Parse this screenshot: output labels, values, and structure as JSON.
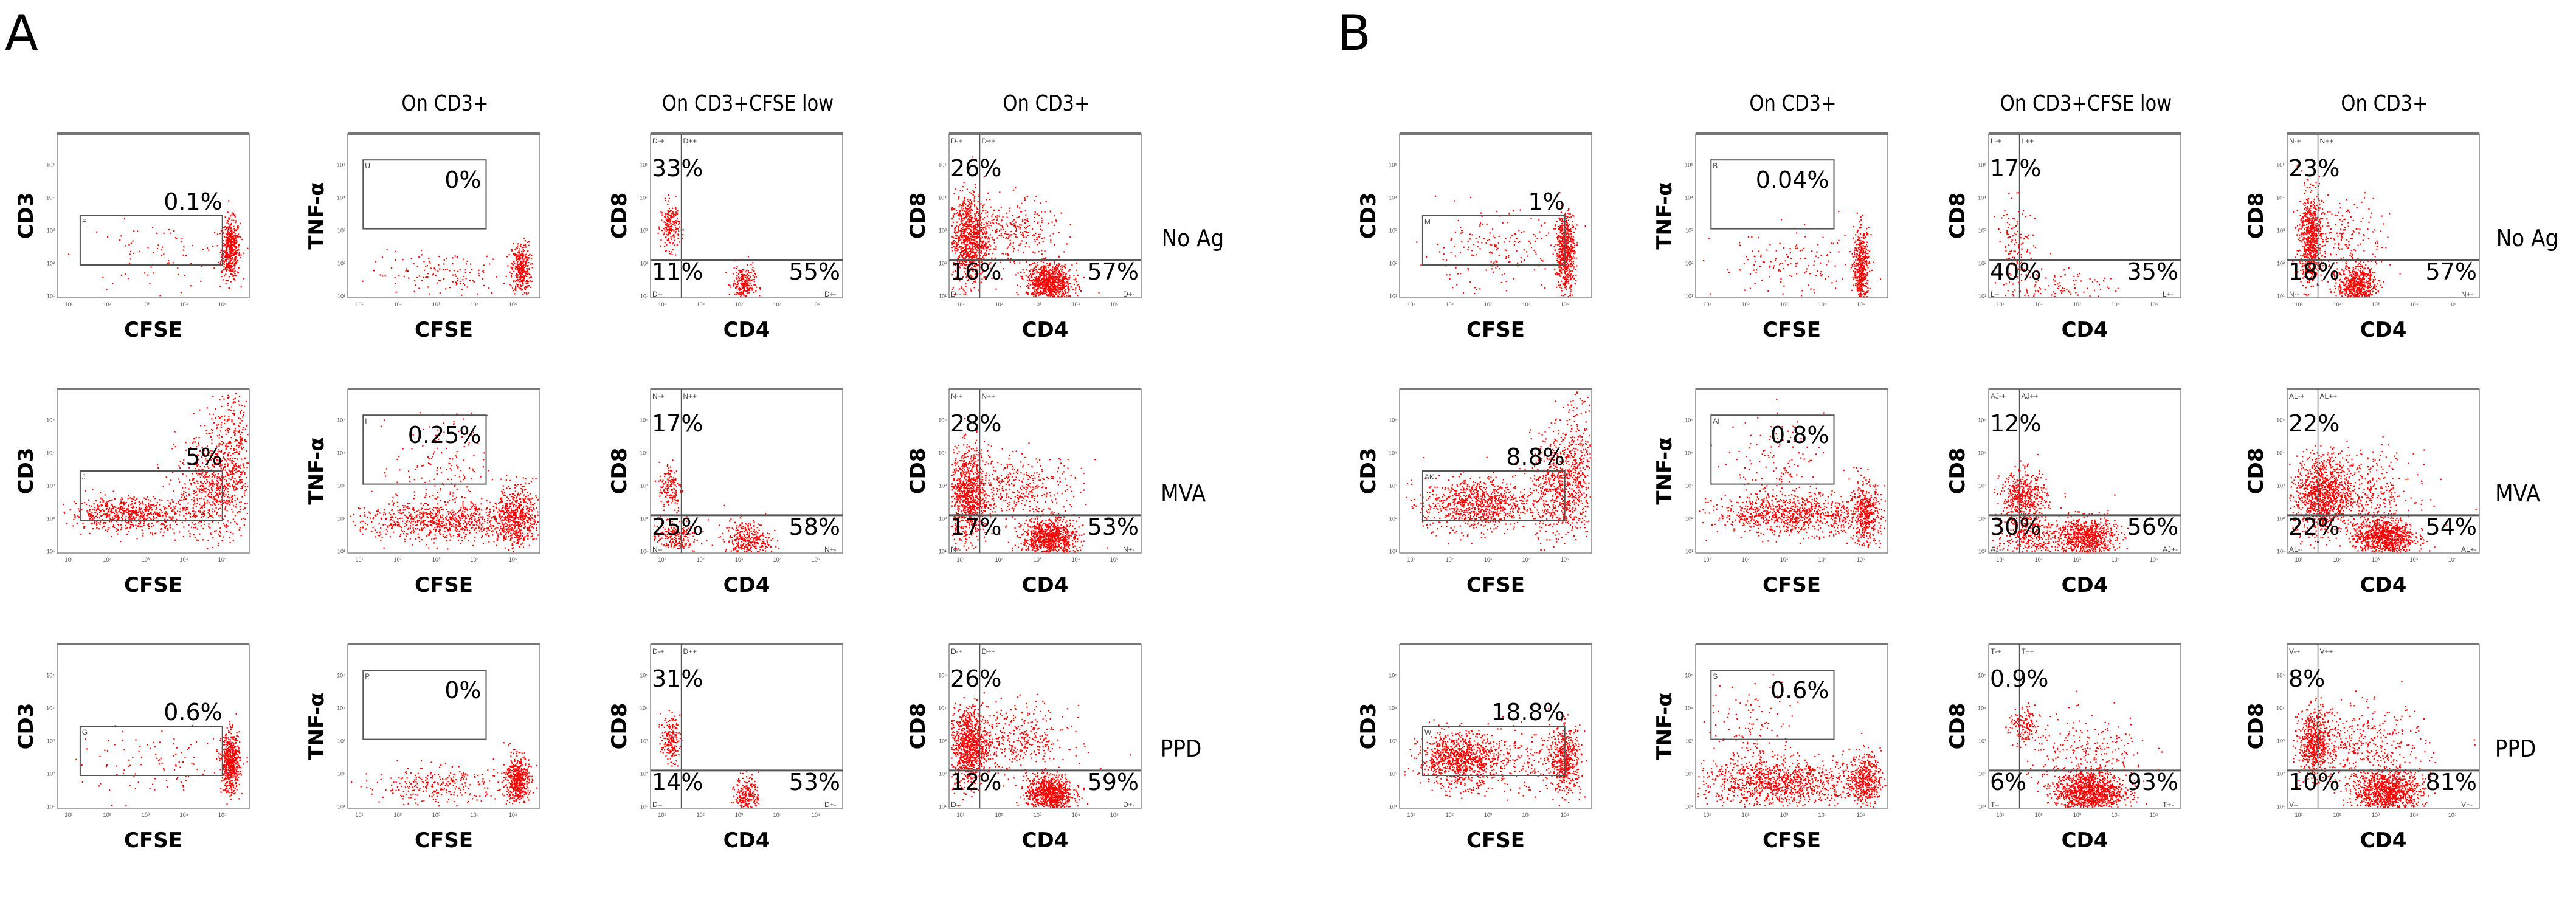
{
  "figure": {
    "groups": [
      {
        "letter": "A",
        "col_titles": [
          "",
          "On CD3+",
          "On CD3+CFSE low",
          "On CD3+"
        ],
        "row_labels": [
          "No Ag",
          "MVA",
          "PPD"
        ]
      },
      {
        "letter": "B",
        "col_titles": [
          "",
          "On CD3+",
          "On CD3+CFSE low",
          "On CD3+"
        ],
        "row_labels": [
          "No Ag",
          "MVA",
          "PPD"
        ]
      }
    ]
  },
  "colors": {
    "dots": "#ff0000",
    "gate": "#555555"
  },
  "chart_data": {
    "type": "scatter",
    "scale": "log10 decades",
    "xlim": [
      0,
      5
    ],
    "ylim": [
      0,
      5
    ],
    "tick_labels": [
      "10¹",
      "10²",
      "10³",
      "10⁴",
      "10⁵"
    ],
    "panels": [
      {
        "group": 0,
        "row": 0,
        "col": 0,
        "xlabel": "CFSE",
        "ylabel": "CD3",
        "gate": "box",
        "gate_label": "E",
        "pct": [
          "0.1%"
        ],
        "clusters": [
          [
            4.5,
            1.5,
            0.12,
            0.45,
            500
          ],
          [
            2.6,
            1.3,
            1.0,
            0.5,
            80
          ]
        ]
      },
      {
        "group": 0,
        "row": 0,
        "col": 1,
        "xlabel": "CFSE",
        "ylabel": "TNF-α",
        "gate": "tbox",
        "gate_label": "U",
        "pct": [
          "0%"
        ],
        "clusters": [
          [
            4.5,
            0.9,
            0.12,
            0.4,
            350
          ],
          [
            2.6,
            0.7,
            1.0,
            0.35,
            150
          ]
        ]
      },
      {
        "group": 0,
        "row": 0,
        "col": 2,
        "xlabel": "CD4",
        "ylabel": "CD8",
        "gate": "quad",
        "gate_labels": [
          "D-+",
          "D++",
          "D--",
          "D+-"
        ],
        "pct": [
          "33%",
          "11%",
          "55%"
        ],
        "clusters": [
          [
            0.5,
            2.2,
            0.12,
            0.35,
            200
          ],
          [
            2.4,
            0.4,
            0.15,
            0.3,
            250
          ]
        ]
      },
      {
        "group": 0,
        "row": 0,
        "col": 3,
        "xlabel": "CD4",
        "ylabel": "CD8",
        "gate": "quad",
        "gate_labels": [
          "D-+",
          "D++",
          "D--",
          "D+-"
        ],
        "pct": [
          "26%",
          "16%",
          "57%"
        ],
        "clusters": [
          [
            0.5,
            1.8,
            0.25,
            0.7,
            900
          ],
          [
            2.6,
            0.45,
            0.3,
            0.3,
            900
          ],
          [
            1.6,
            2.0,
            0.6,
            0.5,
            300
          ]
        ]
      },
      {
        "group": 0,
        "row": 1,
        "col": 0,
        "xlabel": "CFSE",
        "ylabel": "CD3",
        "gate": "box",
        "gate_label": "J",
        "pct": [
          "5%"
        ],
        "clusters": [
          [
            1.9,
            1.2,
            0.8,
            0.25,
            700
          ],
          [
            4.1,
            2.0,
            0.5,
            0.8,
            700
          ],
          [
            4.6,
            3.3,
            0.3,
            0.9,
            300
          ]
        ]
      },
      {
        "group": 0,
        "row": 1,
        "col": 1,
        "xlabel": "CFSE",
        "ylabel": "TNF-α",
        "gate": "tbox",
        "gate_label": "I",
        "pct": [
          "0.25%"
        ],
        "clusters": [
          [
            2.5,
            1.0,
            1.2,
            0.3,
            900
          ],
          [
            4.4,
            1.1,
            0.25,
            0.5,
            500
          ],
          [
            2.4,
            2.6,
            0.6,
            0.8,
            150
          ]
        ]
      },
      {
        "group": 0,
        "row": 1,
        "col": 2,
        "xlabel": "CD4",
        "ylabel": "CD8",
        "gate": "quad",
        "gate_labels": [
          "N-+",
          "N++",
          "N--",
          "N+-"
        ],
        "pct": [
          "17%",
          "25%",
          "58%"
        ],
        "clusters": [
          [
            0.5,
            2.0,
            0.15,
            0.4,
            150
          ],
          [
            2.5,
            0.4,
            0.3,
            0.3,
            350
          ],
          [
            0.6,
            0.5,
            0.3,
            0.25,
            200
          ]
        ]
      },
      {
        "group": 0,
        "row": 1,
        "col": 3,
        "xlabel": "CD4",
        "ylabel": "CD8",
        "gate": "quad",
        "gate_labels": [
          "N-+",
          "N++",
          "N--",
          "N+-"
        ],
        "pct": [
          "28%",
          "17%",
          "53%"
        ],
        "clusters": [
          [
            0.5,
            1.8,
            0.25,
            0.7,
            900
          ],
          [
            2.6,
            0.45,
            0.35,
            0.3,
            900
          ],
          [
            1.8,
            2.0,
            0.8,
            0.5,
            400
          ]
        ]
      },
      {
        "group": 0,
        "row": 2,
        "col": 0,
        "xlabel": "CFSE",
        "ylabel": "CD3",
        "gate": "box",
        "gate_label": "G",
        "pct": [
          "0.6%"
        ],
        "clusters": [
          [
            4.5,
            1.4,
            0.12,
            0.45,
            600
          ],
          [
            2.6,
            1.3,
            1.0,
            0.5,
            100
          ]
        ]
      },
      {
        "group": 0,
        "row": 2,
        "col": 1,
        "xlabel": "CFSE",
        "ylabel": "TNF-α",
        "gate": "tbox",
        "gate_label": "P",
        "pct": [
          "0%"
        ],
        "clusters": [
          [
            4.4,
            0.9,
            0.15,
            0.35,
            500
          ],
          [
            2.3,
            0.7,
            1.0,
            0.3,
            300
          ]
        ]
      },
      {
        "group": 0,
        "row": 2,
        "col": 2,
        "xlabel": "CD4",
        "ylabel": "CD8",
        "gate": "quad",
        "gate_labels": [
          "D-+",
          "D++",
          "D--",
          "D+-"
        ],
        "pct": [
          "31%",
          "14%",
          "53%"
        ],
        "clusters": [
          [
            0.5,
            2.1,
            0.12,
            0.35,
            180
          ],
          [
            2.5,
            0.4,
            0.15,
            0.3,
            230
          ]
        ]
      },
      {
        "group": 0,
        "row": 2,
        "col": 3,
        "xlabel": "CD4",
        "ylabel": "CD8",
        "gate": "quad",
        "gate_labels": [
          "D-+",
          "D++",
          "D--",
          "D+-"
        ],
        "pct": [
          "26%",
          "12%",
          "59%"
        ],
        "clusters": [
          [
            0.5,
            1.9,
            0.25,
            0.6,
            900
          ],
          [
            2.6,
            0.45,
            0.3,
            0.3,
            900
          ],
          [
            1.7,
            2.1,
            0.7,
            0.5,
            400
          ]
        ]
      },
      {
        "group": 1,
        "row": 0,
        "col": 0,
        "xlabel": "CFSE",
        "ylabel": "CD3",
        "gate": "box",
        "gate_label": "M",
        "pct": [
          "1%"
        ],
        "clusters": [
          [
            4.3,
            1.4,
            0.12,
            0.6,
            600
          ],
          [
            2.4,
            1.4,
            1.0,
            0.6,
            200
          ]
        ]
      },
      {
        "group": 1,
        "row": 0,
        "col": 1,
        "xlabel": "CFSE",
        "ylabel": "TNF-α",
        "gate": "tbox",
        "gate_label": "B",
        "pct": [
          "0.04%"
        ],
        "clusters": [
          [
            4.3,
            0.9,
            0.1,
            0.6,
            500
          ],
          [
            2.5,
            1.0,
            1.0,
            0.5,
            150
          ]
        ]
      },
      {
        "group": 1,
        "row": 0,
        "col": 2,
        "xlabel": "CD4",
        "ylabel": "CD8",
        "gate": "quad",
        "gate_labels": [
          "L-+",
          "L++",
          "L--",
          "L+-"
        ],
        "pct": [
          "17%",
          "40%",
          "35%"
        ],
        "clusters": [
          [
            0.7,
            1.3,
            0.25,
            0.8,
            150
          ],
          [
            2.0,
            0.4,
            0.6,
            0.3,
            100
          ]
        ]
      },
      {
        "group": 1,
        "row": 0,
        "col": 3,
        "xlabel": "CD4",
        "ylabel": "CD8",
        "gate": "quad",
        "gate_labels": [
          "N-+",
          "N++",
          "N--",
          "N+-"
        ],
        "pct": [
          "23%",
          "18%",
          "57%"
        ],
        "clusters": [
          [
            0.6,
            1.8,
            0.15,
            0.7,
            700
          ],
          [
            1.8,
            0.4,
            0.25,
            0.3,
            600
          ],
          [
            1.5,
            1.8,
            0.6,
            0.6,
            200
          ]
        ]
      },
      {
        "group": 1,
        "row": 1,
        "col": 0,
        "xlabel": "CFSE",
        "ylabel": "CD3",
        "gate": "box",
        "gate_label": "AK",
        "pct": [
          "8.8%"
        ],
        "clusters": [
          [
            2.0,
            1.5,
            0.7,
            0.4,
            900
          ],
          [
            4.2,
            2.0,
            0.4,
            0.8,
            700
          ],
          [
            4.6,
            3.2,
            0.3,
            0.9,
            200
          ]
        ]
      },
      {
        "group": 1,
        "row": 1,
        "col": 1,
        "xlabel": "CFSE",
        "ylabel": "TNF-α",
        "gate": "tbox",
        "gate_label": "AI",
        "pct": [
          "0.8%"
        ],
        "clusters": [
          [
            2.5,
            1.2,
            1.0,
            0.3,
            900
          ],
          [
            4.4,
            1.2,
            0.2,
            0.5,
            400
          ],
          [
            2.2,
            2.6,
            0.6,
            0.8,
            150
          ]
        ]
      },
      {
        "group": 1,
        "row": 1,
        "col": 2,
        "xlabel": "CD4",
        "ylabel": "CD8",
        "gate": "quad",
        "gate_labels": [
          "AJ-+",
          "AJ++",
          "AJ--",
          "AJ+-"
        ],
        "pct": [
          "12%",
          "30%",
          "56%"
        ],
        "clusters": [
          [
            0.9,
            1.7,
            0.3,
            0.4,
            500
          ],
          [
            2.5,
            0.5,
            0.4,
            0.3,
            800
          ],
          [
            1.0,
            0.5,
            0.4,
            0.3,
            300
          ]
        ]
      },
      {
        "group": 1,
        "row": 1,
        "col": 3,
        "xlabel": "CD4",
        "ylabel": "CD8",
        "gate": "quad",
        "gate_labels": [
          "AL-+",
          "AL++",
          "AL--",
          "AL+-"
        ],
        "pct": [
          "22%",
          "22%",
          "54%"
        ],
        "clusters": [
          [
            0.9,
            1.8,
            0.35,
            0.6,
            1000
          ],
          [
            2.5,
            0.5,
            0.4,
            0.3,
            900
          ],
          [
            1.9,
            1.9,
            0.7,
            0.6,
            400
          ]
        ]
      },
      {
        "group": 1,
        "row": 2,
        "col": 0,
        "xlabel": "CFSE",
        "ylabel": "CD3",
        "gate": "box",
        "gate_label": "W",
        "pct": [
          "18.8%"
        ],
        "clusters": [
          [
            1.5,
            1.5,
            0.5,
            0.4,
            900
          ],
          [
            4.3,
            1.5,
            0.2,
            0.5,
            500
          ],
          [
            2.9,
            1.4,
            0.8,
            0.5,
            250
          ]
        ]
      },
      {
        "group": 1,
        "row": 2,
        "col": 1,
        "xlabel": "CFSE",
        "ylabel": "TNF-α",
        "gate": "tbox",
        "gate_label": "S",
        "pct": [
          "0.6%"
        ],
        "clusters": [
          [
            2.2,
            0.8,
            1.1,
            0.35,
            1100
          ],
          [
            4.4,
            0.9,
            0.2,
            0.4,
            400
          ],
          [
            1.5,
            2.2,
            0.6,
            0.8,
            150
          ]
        ]
      },
      {
        "group": 1,
        "row": 2,
        "col": 2,
        "xlabel": "CD4",
        "ylabel": "CD8",
        "gate": "quad",
        "gate_labels": [
          "T-+",
          "T++",
          "T--",
          "T+-"
        ],
        "pct": [
          "0.9%",
          "6%",
          "93%"
        ],
        "clusters": [
          [
            0.9,
            2.5,
            0.2,
            0.3,
            150
          ],
          [
            2.6,
            0.5,
            0.45,
            0.35,
            1200
          ],
          [
            2.6,
            1.6,
            0.8,
            0.6,
            250
          ]
        ]
      },
      {
        "group": 1,
        "row": 2,
        "col": 3,
        "xlabel": "CD4",
        "ylabel": "CD8",
        "gate": "quad",
        "gate_labels": [
          "V-+",
          "V++",
          "V--",
          "V+-"
        ],
        "pct": [
          "8%",
          "10%",
          "81%"
        ],
        "clusters": [
          [
            0.7,
            2.0,
            0.2,
            0.5,
            600
          ],
          [
            2.6,
            0.5,
            0.45,
            0.35,
            1100
          ],
          [
            2.0,
            1.9,
            0.8,
            0.6,
            400
          ]
        ]
      }
    ]
  }
}
